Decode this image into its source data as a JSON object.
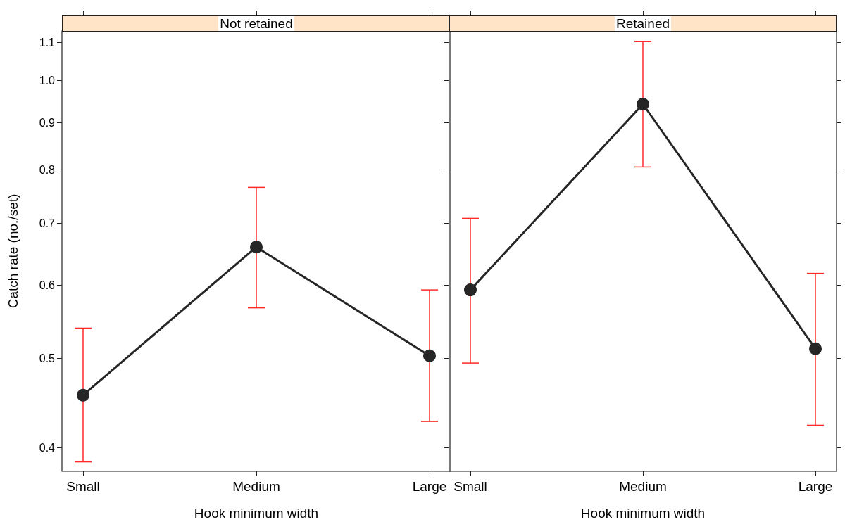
{
  "chart_data": [
    {
      "type": "line",
      "title": "Not retained",
      "xlabel": "Hook minimum width",
      "ylabel": "Catch rate (no./set)",
      "categories": [
        "Small",
        "Medium",
        "Large"
      ],
      "log": true,
      "marker": "circle",
      "line_style": "solid",
      "ylim": [
        0.377,
        1.132
      ],
      "yticks": [
        0.4,
        0.5,
        0.6,
        0.7,
        0.8,
        0.9,
        {
          "value": 1,
          "label": "1.0"
        },
        1.1
      ],
      "series": [
        {
          "color": "#262626",
          "values": [
            0.456,
            0.66,
            0.503
          ],
          "errors": [
            [
              0.386,
              0.539
            ],
            [
              0.567,
              0.766
            ],
            [
              0.427,
              0.593
            ]
          ]
        }
      ]
    },
    {
      "type": "line",
      "title": "Retained",
      "xlabel": "Hook minimum width",
      "categories": [
        "Small",
        "Medium",
        "Large"
      ],
      "log": true,
      "marker": "circle",
      "line_style": "solid",
      "tick_labels": "x",
      "ylim": [
        0.377,
        1.132
      ],
      "yticks": [
        0.4,
        0.5,
        0.6,
        0.7,
        0.8,
        0.9,
        1,
        1.1
      ],
      "series": [
        {
          "color": "#262626",
          "values": [
            0.593,
            0.943,
            0.512
          ],
          "errors": [
            [
              0.494,
              0.709
            ],
            [
              0.806,
              1.103
            ],
            [
              0.423,
              0.618
            ]
          ]
        }
      ]
    }
  ]
}
